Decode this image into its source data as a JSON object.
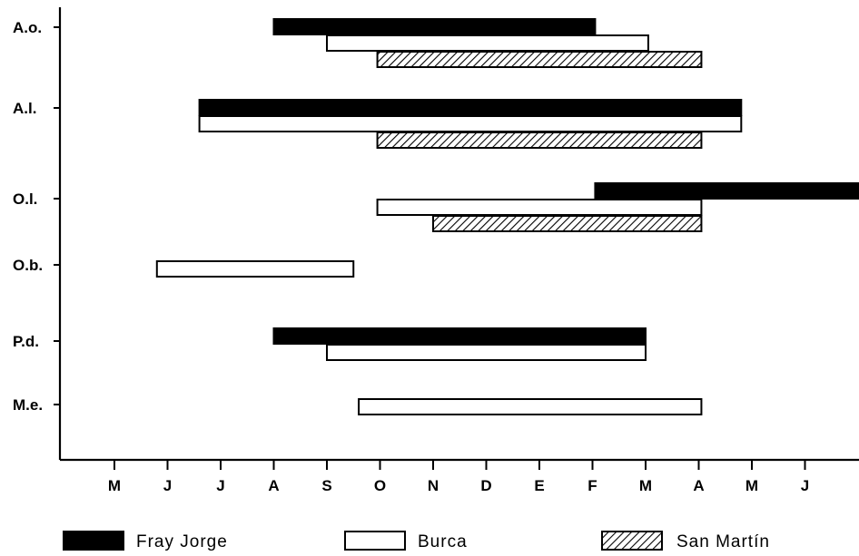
{
  "chart_data": {
    "type": "gantt",
    "x_ticks": [
      "M",
      "J",
      "J",
      "A",
      "S",
      "O",
      "N",
      "D",
      "E",
      "F",
      "M",
      "A",
      "M",
      "J"
    ],
    "legend": [
      {
        "name": "Fray Jorge",
        "pattern": "solid"
      },
      {
        "name": "Burca",
        "pattern": "open"
      },
      {
        "name": "San Martín",
        "pattern": "hatched"
      }
    ],
    "species": [
      {
        "label": "A.o.",
        "bars": [
          {
            "site": "Fray Jorge",
            "start": 3.0,
            "end": 9.05
          },
          {
            "site": "Burca",
            "start": 4.0,
            "end": 10.05
          },
          {
            "site": "San Martín",
            "start": 4.95,
            "end": 11.05
          }
        ]
      },
      {
        "label": "A.l.",
        "bars": [
          {
            "site": "Fray Jorge",
            "start": 1.6,
            "end": 11.8
          },
          {
            "site": "Burca",
            "start": 1.6,
            "end": 11.8
          },
          {
            "site": "San Martín",
            "start": 4.95,
            "end": 11.05
          }
        ]
      },
      {
        "label": "O.l.",
        "bars": [
          {
            "site": "Fray Jorge",
            "start": 9.05,
            "end": 14.1
          },
          {
            "site": "Burca",
            "start": 4.95,
            "end": 11.05
          },
          {
            "site": "San Martín",
            "start": 6.0,
            "end": 11.05
          }
        ]
      },
      {
        "label": "O.b.",
        "bars": [
          {
            "site": "Burca",
            "start": 0.8,
            "end": 4.5
          }
        ]
      },
      {
        "label": "P.d.",
        "bars": [
          {
            "site": "Fray Jorge",
            "start": 3.0,
            "end": 10.0
          },
          {
            "site": "Burca",
            "start": 4.0,
            "end": 10.0
          }
        ]
      },
      {
        "label": "M.e.",
        "bars": [
          {
            "site": "Burca",
            "start": 4.6,
            "end": 11.05
          }
        ]
      }
    ]
  }
}
